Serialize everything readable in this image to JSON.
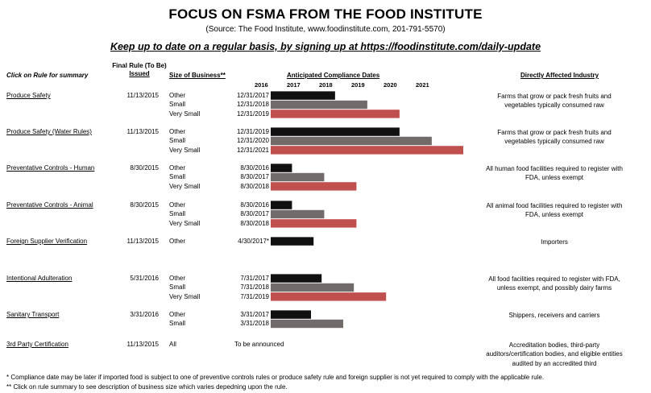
{
  "header": {
    "title": "FOCUS ON FSMA FROM THE FOOD INSTITUTE",
    "source": "(Source: The Food Institute, www.foodinstitute.com, 201-791-5570)",
    "tagline": "Keep up to date on a regular basis, by signing up at https://foodinstitute.com/daily-update"
  },
  "columns": {
    "rule": "Click on Rule for summary",
    "final_rule_line1": "Final Rule (To Be)",
    "final_rule_line2": "Issued",
    "size": "Size of Business**",
    "dates": "Anticipated Compliance Dates",
    "industry": "Directly Affected Industry"
  },
  "colors": {
    "other": "#111111",
    "small": "#716c69",
    "very_small": "#c0504d"
  },
  "chart_data": {
    "type": "bar",
    "orientation": "horizontal",
    "x_axis_years": [
      "2016",
      "2017",
      "2018",
      "2019",
      "2020",
      "2021"
    ],
    "xlim": [
      2015.5,
      2021.25
    ],
    "series": [
      {
        "name": "Other"
      },
      {
        "name": "Small"
      },
      {
        "name": "Very Small"
      }
    ],
    "rules": [
      {
        "name": "Produce Safety",
        "issued": "11/13/2015",
        "industry": "Farms that grow or pack fresh fruits and vegetables typically consumed raw",
        "rows": [
          {
            "size": "Other",
            "label": "12/31/2017",
            "date": 2017.997
          },
          {
            "size": "Small",
            "label": "12/31/2018",
            "date": 2018.997
          },
          {
            "size": "Very Small",
            "label": "12/31/2019",
            "date": 2019.997
          }
        ]
      },
      {
        "name": "Produce Safety (Water Rules)",
        "issued": "11/13/2015",
        "industry": "Farms that grow or pack fresh fruits and vegetables typically consumed raw",
        "rows": [
          {
            "size": "Other",
            "label": "12/31/2019",
            "date": 2019.997
          },
          {
            "size": "Small",
            "label": "12/31/2020",
            "date": 2020.997
          },
          {
            "size": "Very Small",
            "label": "12/31/2021",
            "date": 2021.997
          }
        ]
      },
      {
        "name": "Preventative Controls - Human",
        "issued": "8/30/2015",
        "industry": "All human food facilities required to register with FDA, unless exempt",
        "rows": [
          {
            "size": "Other",
            "label": "8/30/2016",
            "date": 2016.66
          },
          {
            "size": "Small",
            "label": "8/30/2017",
            "date": 2017.66
          },
          {
            "size": "Very Small",
            "label": "8/30/2018",
            "date": 2018.66
          }
        ]
      },
      {
        "name": "Preventative Controls - Animal",
        "issued": "8/30/2015",
        "industry": "All animal food facilities required to register with FDA, unless exempt",
        "rows": [
          {
            "size": "Other",
            "label": "8/30/2016",
            "date": 2016.66
          },
          {
            "size": "Small",
            "label": "8/30/2017",
            "date": 2017.66
          },
          {
            "size": "Very Small",
            "label": "8/30/2018",
            "date": 2018.66
          }
        ]
      },
      {
        "name": "Foreign Supplier Verification",
        "issued": "11/13/2015",
        "industry": "Importers",
        "rows": [
          {
            "size": "Other",
            "label": "4/30/2017*",
            "date": 2017.33
          }
        ]
      },
      {
        "name": "Intentional Adulteration",
        "issued": "5/31/2016",
        "industry": "All food facilities required to register with FDA, unless exempt, and possibly dairy farms",
        "rows": [
          {
            "size": "Other",
            "label": "7/31/2017",
            "date": 2017.58
          },
          {
            "size": "Small",
            "label": "7/31/2018",
            "date": 2018.58
          },
          {
            "size": "Very Small",
            "label": "7/31/2019",
            "date": 2019.58
          }
        ]
      },
      {
        "name": "Sanitary Transport",
        "issued": "3/31/2016",
        "industry": "Shippers, receivers and carriers",
        "rows": [
          {
            "size": "Other",
            "label": "3/31/2017",
            "date": 2017.25
          },
          {
            "size": "Small",
            "label": "3/31/2018",
            "date": 2018.25
          }
        ]
      },
      {
        "name": "3rd Party Certification",
        "issued": "11/13/2015",
        "industry": "Accreditation bodies, third-party auditors/certification bodies, and eligible entities audited by an accredited third",
        "rows": [
          {
            "size": "All",
            "label": "To be announced",
            "date": null
          }
        ]
      }
    ]
  },
  "footnotes": [
    "* Compliance date may be later if imported food is subject to one of preventive controls rules or produce safety rule and foreign supplier is not yet required to comply with the applicable rule.",
    "** Click on rule summary to see description of business size which varies depedning upon the rule."
  ]
}
